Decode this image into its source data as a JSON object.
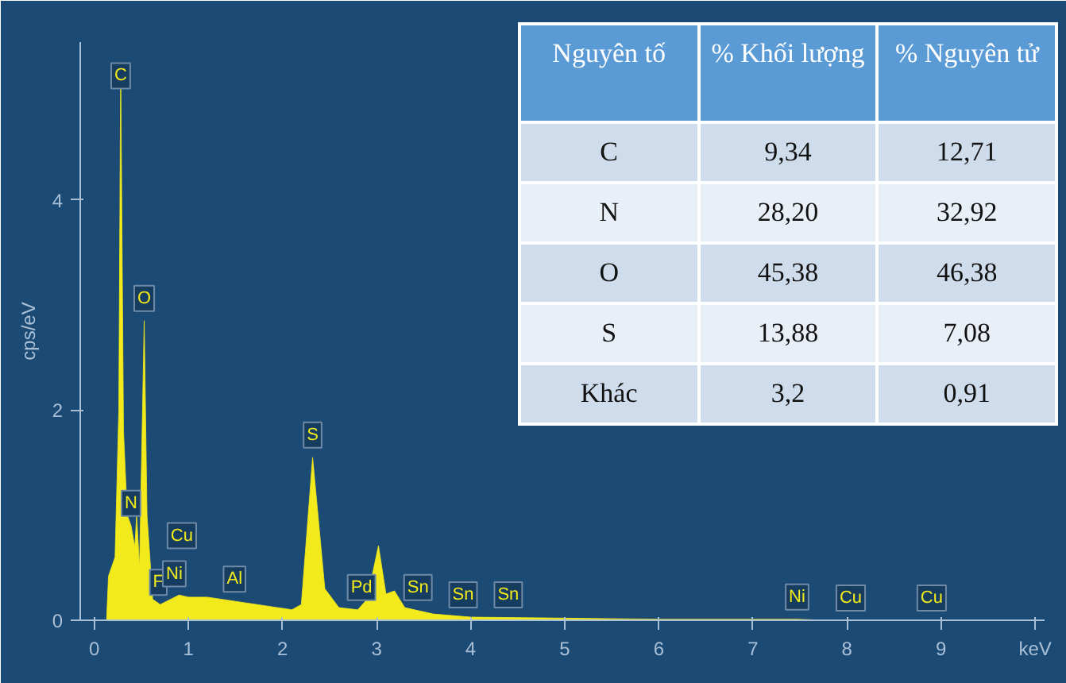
{
  "chart_data": [
    {
      "type": "area",
      "ylabel": "cps/eV",
      "x": [
        0.13,
        0.15,
        0.22,
        0.26,
        0.28,
        0.31,
        0.35,
        0.39,
        0.43,
        0.45,
        0.48,
        0.53,
        0.56,
        0.62,
        0.7,
        0.9,
        1.0,
        1.2,
        1.5,
        1.8,
        2.1,
        2.2,
        2.32,
        2.45,
        2.6,
        2.8,
        2.9,
        3.02,
        3.1,
        3.19,
        3.3,
        3.6,
        4.0,
        5.0,
        6.0,
        7.0,
        7.47,
        7.75,
        8.04,
        8.9,
        10.0
      ],
      "series": [
        {
          "color": "#f2ea1a",
          "values": [
            0,
            0.42,
            0.6,
            2.0,
            5.3,
            1.8,
            1.0,
            0.9,
            0.7,
            1.0,
            0.5,
            2.85,
            1.0,
            0.2,
            0.15,
            0.24,
            0.22,
            0.22,
            0.18,
            0.14,
            0.1,
            0.15,
            1.55,
            0.3,
            0.12,
            0.1,
            0.2,
            0.71,
            0.25,
            0.28,
            0.12,
            0.06,
            0.03,
            0.02,
            0.01,
            0.01,
            0.01,
            0,
            0,
            0,
            0
          ]
        }
      ],
      "xlim": [
        -0.15,
        10.1
      ],
      "ylim": [
        0,
        5.5
      ],
      "xticks": [
        0,
        1,
        2,
        3,
        4,
        5,
        6,
        7,
        8,
        9,
        {
          "value": 10,
          "label": "keV"
        }
      ],
      "yticks": [
        0,
        2,
        4
      ],
      "grid": false,
      "annotations": [
        {
          "text": "C",
          "x": 0.28,
          "y": 5.3
        },
        {
          "text": "N",
          "x": 0.39,
          "y": 0.9
        },
        {
          "text": "O",
          "x": 0.53,
          "y": 2.85
        },
        {
          "text": "F",
          "x": 0.68,
          "y": 0.15
        },
        {
          "text": "Ni",
          "x": 0.85,
          "y": 0.23
        },
        {
          "text": "Cu",
          "x": 0.93,
          "y": 0.23
        },
        {
          "text": "Al",
          "x": 1.49,
          "y": 0.18
        },
        {
          "text": "S",
          "x": 2.32,
          "y": 1.55
        },
        {
          "text": "Pd",
          "x": 2.84,
          "y": 0.1
        },
        {
          "text": "Sn",
          "x": 3.44,
          "y": 0.1
        },
        {
          "text": "Sn",
          "x": 3.92,
          "y": 0.03
        },
        {
          "text": "Sn",
          "x": 4.4,
          "y": 0.03
        },
        {
          "text": "Ni",
          "x": 7.47,
          "y": 0.01
        },
        {
          "text": "Cu",
          "x": 8.04,
          "y": 0
        },
        {
          "text": "Cu",
          "x": 8.9,
          "y": 0
        }
      ]
    },
    {
      "type": "other",
      "ylabel": "Nguyên tố",
      "categories": [
        "% Khối lượng",
        "% Nguyên tử"
      ],
      "y_categories": [
        "C",
        "N",
        "O",
        "S",
        "Khác"
      ],
      "cells": [
        [
          "9,34",
          "12,71"
        ],
        [
          "28,20",
          "32,92"
        ],
        [
          "45,38",
          "46,38"
        ],
        [
          "13,88",
          "7,08"
        ],
        [
          "3,2",
          "0,91"
        ]
      ]
    }
  ]
}
